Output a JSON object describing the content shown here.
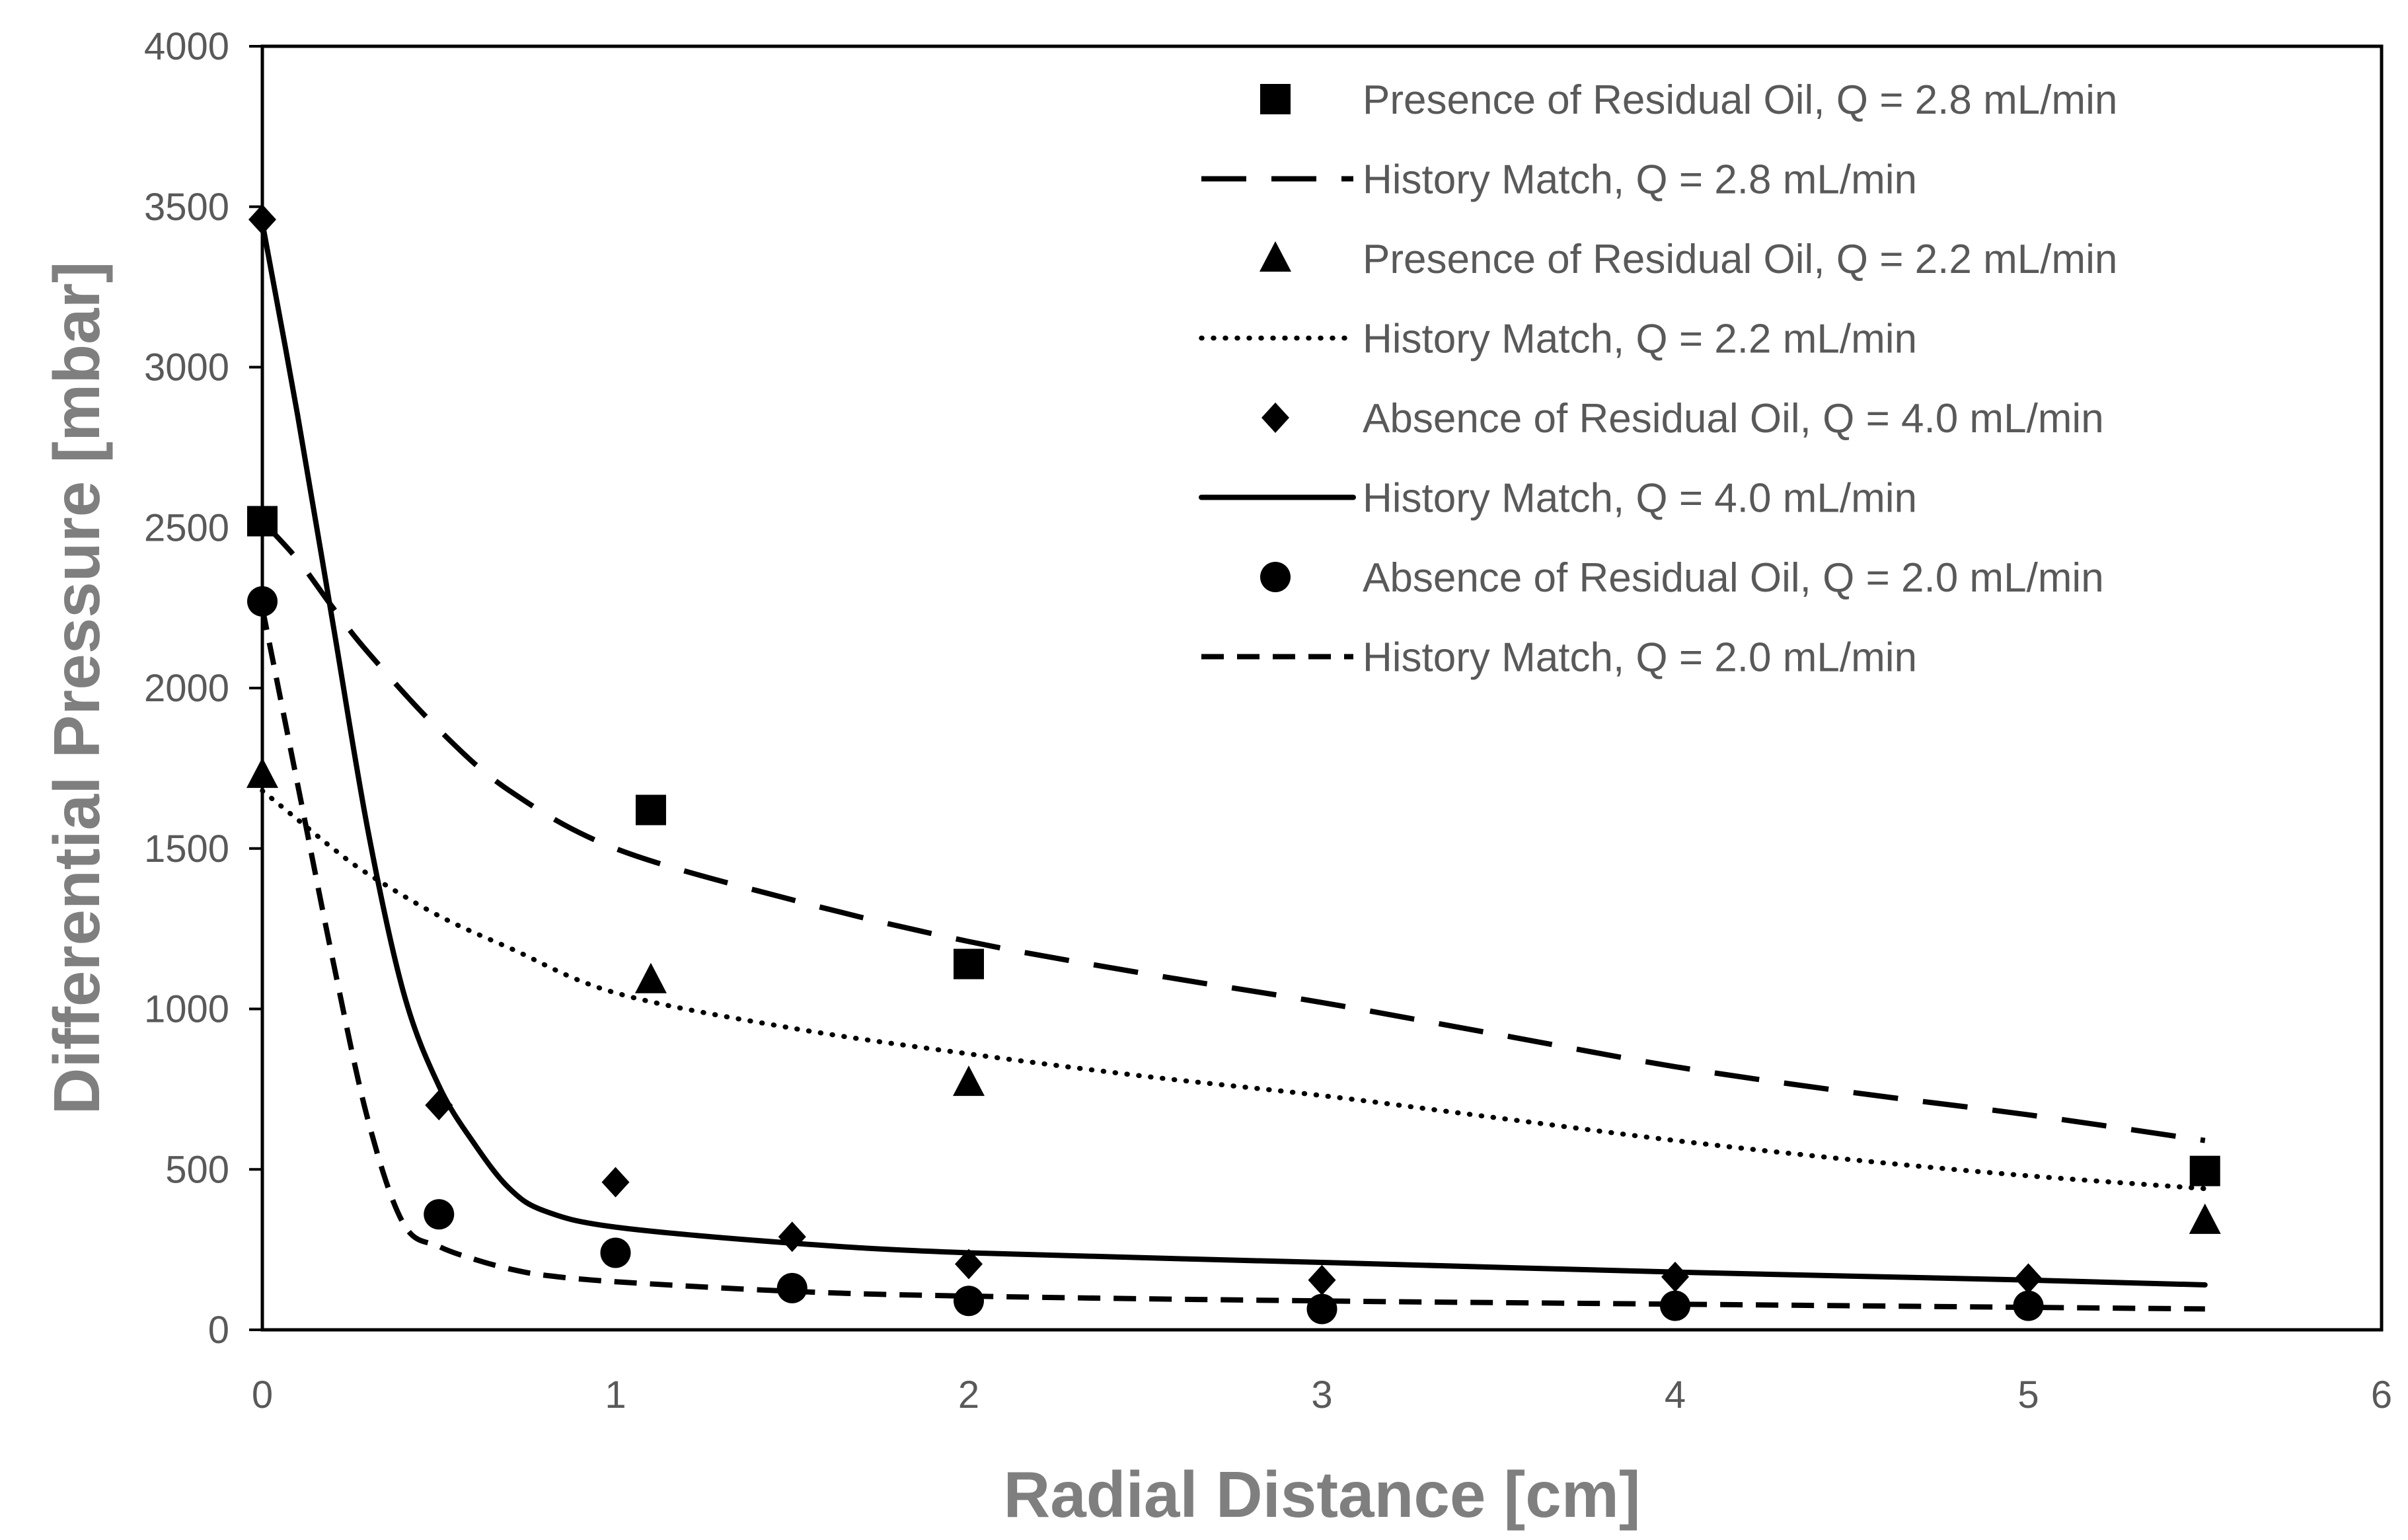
{
  "chart_data": {
    "type": "scatter",
    "title": "",
    "xlabel": "Radial Distance [cm]",
    "ylabel": "Differential Pressure [mbar]",
    "xlim": [
      0,
      6
    ],
    "ylim": [
      0,
      4000
    ],
    "xticks": [
      "0",
      "1",
      "2",
      "3",
      "4",
      "5",
      "6"
    ],
    "yticks": [
      "0",
      "500",
      "1000",
      "1500",
      "2000",
      "2500",
      "3000",
      "3500",
      "4000"
    ],
    "grid": false,
    "legend_position": "top-right",
    "series": [
      {
        "name": "Presence of Residual Oil, Q = 2.8 mL/min",
        "kind": "marker",
        "marker": "square",
        "x": [
          0,
          1.1,
          2,
          5.5
        ],
        "y": [
          2520,
          1620,
          1140,
          495
        ]
      },
      {
        "name": "History Match, Q = 2.8 mL/min",
        "kind": "line",
        "dash": "long-dash",
        "x": [
          0,
          0.1,
          0.2,
          0.3,
          0.5,
          0.7,
          1.0,
          1.5,
          2.0,
          2.5,
          3.0,
          3.5,
          4.0,
          4.5,
          5.0,
          5.5
        ],
        "y": [
          2520,
          2400,
          2250,
          2110,
          1870,
          1680,
          1500,
          1340,
          1210,
          1110,
          1020,
          920,
          820,
          740,
          670,
          590
        ]
      },
      {
        "name": "Presence of Residual Oil, Q = 2.2 mL/min",
        "kind": "marker",
        "marker": "triangle",
        "x": [
          0,
          1.1,
          2,
          5.5
        ],
        "y": [
          1730,
          1090,
          770,
          340
        ]
      },
      {
        "name": "History Match, Q = 2.2 mL/min",
        "kind": "line",
        "dash": "dotted",
        "x": [
          0,
          0.1,
          0.2,
          0.3,
          0.5,
          0.7,
          1.0,
          1.5,
          2.0,
          2.5,
          3.0,
          3.5,
          4.0,
          4.5,
          5.0,
          5.5
        ],
        "y": [
          1680,
          1590,
          1500,
          1420,
          1290,
          1190,
          1050,
          940,
          860,
          790,
          730,
          660,
          590,
          530,
          480,
          440
        ]
      },
      {
        "name": "Absence of Residual Oil, Q = 4.0 mL/min",
        "kind": "marker",
        "marker": "diamond",
        "x": [
          0,
          0.5,
          1,
          1.5,
          2,
          3,
          4,
          5
        ],
        "y": [
          3460,
          700,
          460,
          290,
          205,
          155,
          165,
          160
        ]
      },
      {
        "name": "History Match, Q = 4.0 mL/min",
        "kind": "line",
        "dash": "solid",
        "x": [
          0,
          0.1,
          0.2,
          0.3,
          0.4,
          0.5,
          0.6,
          0.7,
          0.8,
          1.0,
          1.5,
          2.0,
          3.0,
          4.0,
          5.0,
          5.5
        ],
        "y": [
          3450,
          2850,
          2200,
          1550,
          1050,
          760,
          580,
          440,
          370,
          320,
          270,
          240,
          210,
          180,
          155,
          140
        ]
      },
      {
        "name": "Absence of Residual Oil, Q = 2.0 mL/min",
        "kind": "marker",
        "marker": "circle",
        "x": [
          0,
          0.5,
          1,
          1.5,
          2,
          3,
          4,
          5
        ],
        "y": [
          2270,
          360,
          240,
          130,
          90,
          65,
          75,
          75
        ]
      },
      {
        "name": "History Match, Q = 2.0 mL/min",
        "kind": "line",
        "dash": "short-dash",
        "x": [
          0,
          0.1,
          0.2,
          0.3,
          0.4,
          0.5,
          0.6,
          0.7,
          0.8,
          1.0,
          1.5,
          2.0,
          3.0,
          4.0,
          5.0,
          5.5
        ],
        "y": [
          2250,
          1700,
          1150,
          650,
          330,
          260,
          220,
          190,
          170,
          150,
          120,
          105,
          90,
          80,
          70,
          65
        ]
      }
    ]
  }
}
